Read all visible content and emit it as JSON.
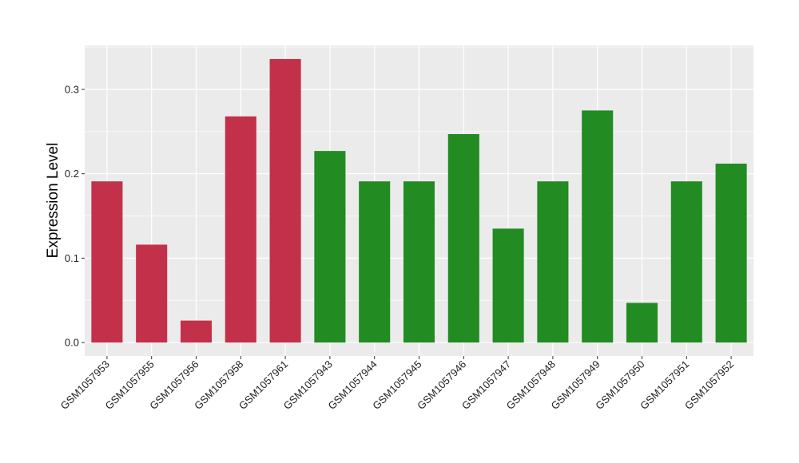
{
  "chart_data": {
    "type": "bar",
    "title": "",
    "xlabel": "",
    "ylabel": "Expression Level",
    "ylim": [
      -0.016,
      0.352
    ],
    "yticks": [
      0.0,
      0.1,
      0.2,
      0.3
    ],
    "ytick_labels": [
      "0.0",
      "0.1",
      "0.2",
      "0.3"
    ],
    "grid": true,
    "categories": [
      "GSM1057953",
      "GSM1057955",
      "GSM1057956",
      "GSM1057958",
      "GSM1057961",
      "GSM1057943",
      "GSM1057944",
      "GSM1057945",
      "GSM1057946",
      "GSM1057947",
      "GSM1057948",
      "GSM1057949",
      "GSM1057950",
      "GSM1057951",
      "GSM1057952"
    ],
    "values": [
      0.191,
      0.116,
      0.026,
      0.268,
      0.336,
      0.227,
      0.191,
      0.191,
      0.247,
      0.135,
      0.191,
      0.275,
      0.047,
      0.191,
      0.212
    ],
    "bar_colors": [
      "#c3304a",
      "#c3304a",
      "#c3304a",
      "#c3304a",
      "#c3304a",
      "#228b22",
      "#228b22",
      "#228b22",
      "#228b22",
      "#228b22",
      "#228b22",
      "#228b22",
      "#228b22",
      "#228b22",
      "#228b22"
    ],
    "panel_background": "#ebebeb",
    "grid_color": "#ffffff"
  }
}
